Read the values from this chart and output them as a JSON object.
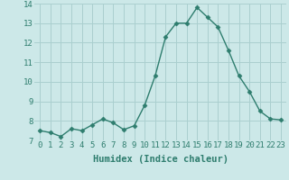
{
  "x": [
    0,
    1,
    2,
    3,
    4,
    5,
    6,
    7,
    8,
    9,
    10,
    11,
    12,
    13,
    14,
    15,
    16,
    17,
    18,
    19,
    20,
    21,
    22,
    23
  ],
  "y": [
    7.5,
    7.4,
    7.2,
    7.6,
    7.5,
    7.8,
    8.1,
    7.9,
    7.55,
    7.75,
    8.8,
    10.3,
    12.3,
    13.0,
    13.0,
    13.8,
    13.3,
    12.8,
    11.6,
    10.3,
    9.5,
    8.5,
    8.1,
    8.05
  ],
  "line_color": "#2e7d6e",
  "marker": "D",
  "marker_size": 2.5,
  "bg_color": "#cce8e8",
  "grid_color": "#aacfcf",
  "xlabel": "Humidex (Indice chaleur)",
  "ylim": [
    7,
    14
  ],
  "xlim": [
    -0.5,
    23.5
  ],
  "yticks": [
    7,
    8,
    9,
    10,
    11,
    12,
    13,
    14
  ],
  "xticks": [
    0,
    1,
    2,
    3,
    4,
    5,
    6,
    7,
    8,
    9,
    10,
    11,
    12,
    13,
    14,
    15,
    16,
    17,
    18,
    19,
    20,
    21,
    22,
    23
  ],
  "xlabel_fontsize": 7.5,
  "tick_fontsize": 6.5,
  "tick_color": "#2e7d6e",
  "label_color": "#2e7d6e",
  "line_width": 1.0
}
